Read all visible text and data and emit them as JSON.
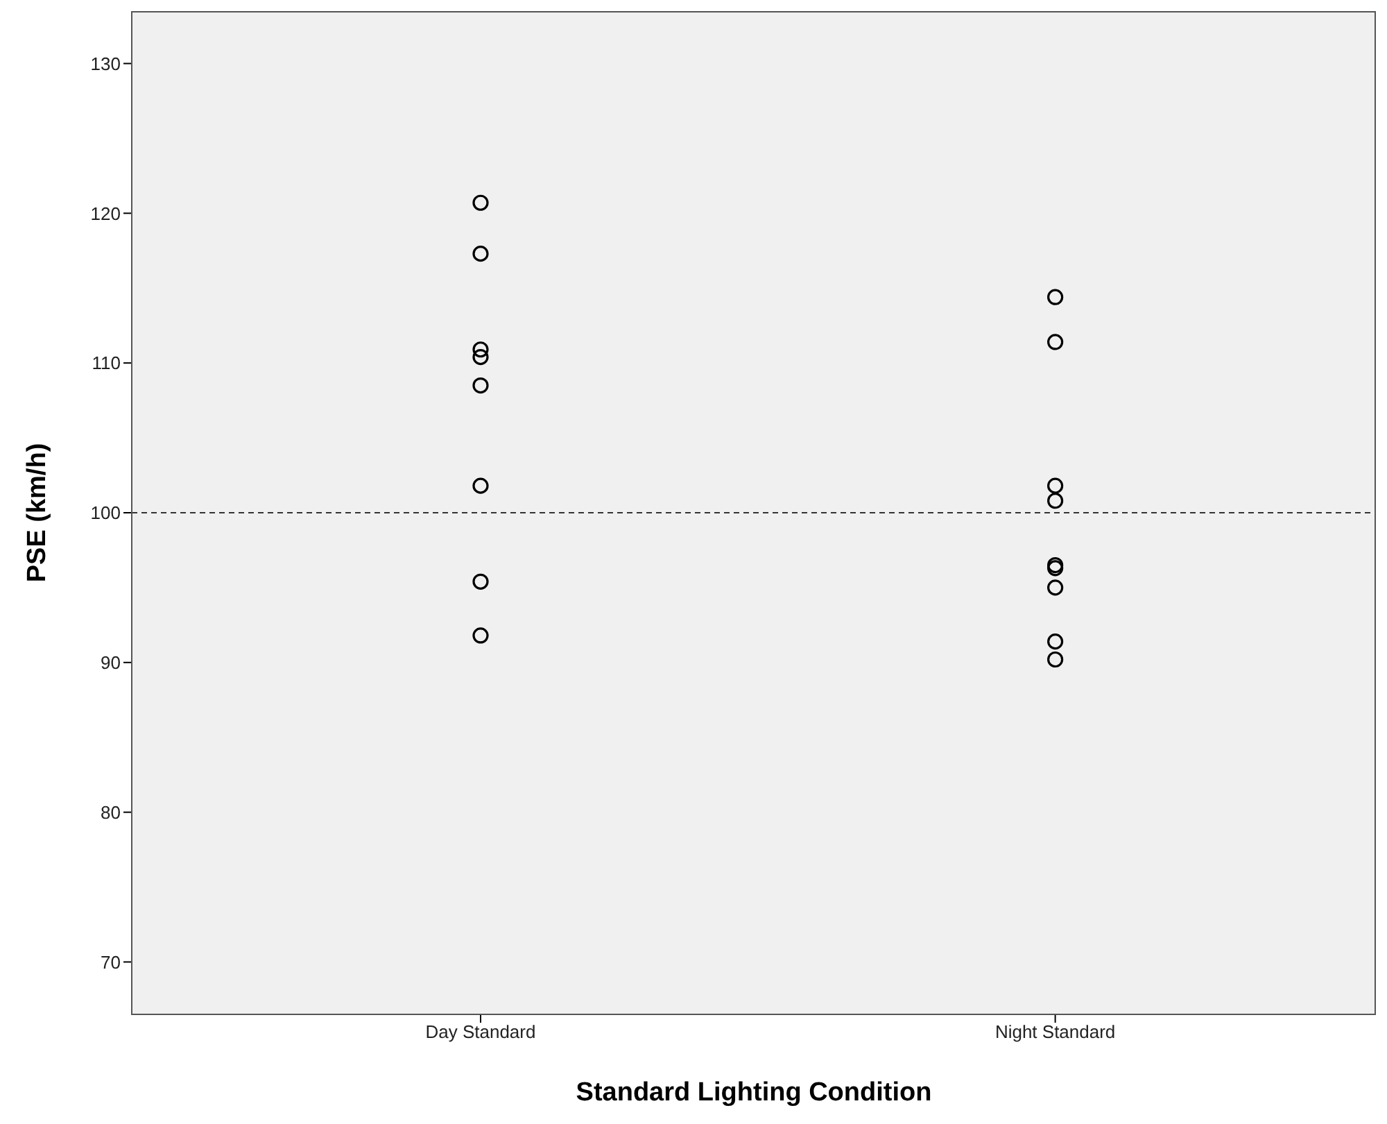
{
  "chart_data": {
    "type": "scatter",
    "xlabel": "Standard Lighting Condition",
    "ylabel": "PSE (km/h)",
    "categories": [
      "Day Standard",
      "Night Standard"
    ],
    "series": [
      {
        "color": "#000000",
        "x": [
          "Day Standard",
          "Day Standard",
          "Day Standard",
          "Day Standard",
          "Day Standard",
          "Day Standard",
          "Day Standard",
          "Day Standard",
          "Night Standard",
          "Night Standard",
          "Night Standard",
          "Night Standard",
          "Night Standard",
          "Night Standard",
          "Night Standard",
          "Night Standard",
          "Night Standard"
        ],
        "values": [
          120.7,
          117.3,
          110.9,
          110.4,
          108.5,
          101.8,
          95.4,
          91.8,
          114.4,
          111.4,
          101.8,
          100.8,
          96.5,
          96.3,
          95.0,
          91.4,
          90.2
        ]
      }
    ],
    "ylim": [
      66.5,
      133.5
    ],
    "yticks": [
      70,
      80,
      90,
      100,
      110,
      120,
      130
    ],
    "legend": false,
    "marker": "circle",
    "ref_lines": [
      {
        "axis": "y",
        "value": 100,
        "color": "#333333",
        "line_style": "dashed"
      }
    ]
  }
}
